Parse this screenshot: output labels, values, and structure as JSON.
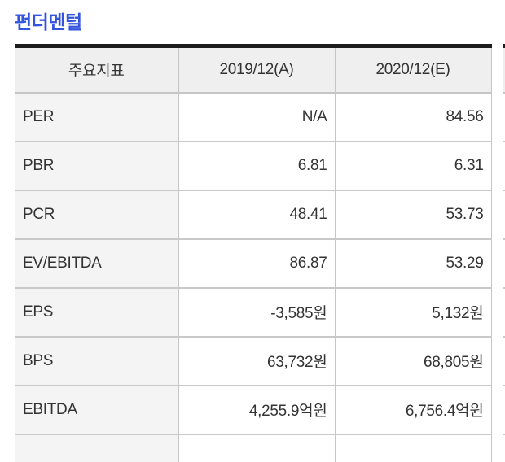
{
  "page": {
    "title": "펀더멘털"
  },
  "table": {
    "columns": [
      "주요지표",
      "2019/12(A)",
      "2020/12(E)"
    ],
    "rows": [
      {
        "label": "PER",
        "values": [
          "N/A",
          "84.56"
        ]
      },
      {
        "label": "PBR",
        "values": [
          "6.81",
          "6.31"
        ]
      },
      {
        "label": "PCR",
        "values": [
          "48.41",
          "53.73"
        ]
      },
      {
        "label": "EV/EBITDA",
        "values": [
          "86.87",
          "53.29"
        ]
      },
      {
        "label": "EPS",
        "values": [
          "-3,585원",
          "5,132원"
        ]
      },
      {
        "label": "BPS",
        "values": [
          "63,732원",
          "68,805원"
        ]
      },
      {
        "label": "EBITDA",
        "values": [
          "4,255.9억원",
          "6,756.4억원"
        ]
      },
      {
        "label": "",
        "values": [
          "",
          ""
        ]
      }
    ]
  },
  "colors": {
    "title_blue": "#3354dc",
    "table_top_border": "#1d1d1d",
    "header_bg": "#efefef",
    "label_col_bg": "#f4f4f4",
    "row_divider": "#c9c9c9",
    "col_divider": "#c5c5c5",
    "text": "#333333"
  }
}
